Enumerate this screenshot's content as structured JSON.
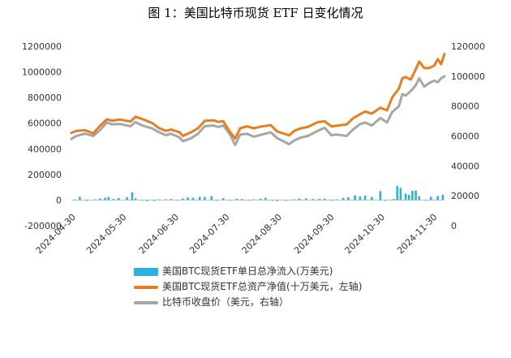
{
  "title": "图 1：美国比特币现货 ETF 日变化情况",
  "chart_data": {
    "type": "bar+line",
    "title": "图 1：美国比特币现货 ETF 日变化情况",
    "grid": false,
    "legend_position": "bottom",
    "x": {
      "tick_labels": [
        "2024-04-30",
        "2024-05-30",
        "2024-06-30",
        "2024-07-30",
        "2024-08-30",
        "2024-09-30",
        "2024-10-30",
        "2024-11-30"
      ],
      "start": "2024-04-30",
      "end": "2024-12-07"
    },
    "y_left": {
      "ylim": [
        -200000,
        1200000
      ],
      "tick_labels": [
        "-200000",
        "0",
        "200000",
        "400000",
        "600000",
        "800000",
        "1000000",
        "1200000"
      ]
    },
    "y_right": {
      "ylim": [
        0,
        120000
      ],
      "tick_labels": [
        "0",
        "20000",
        "40000",
        "60000",
        "80000",
        "100000",
        "120000"
      ]
    },
    "series": [
      {
        "name": "美国BTC现货ETF单日总净流入(万美元)",
        "type": "bar",
        "axis": "left",
        "color": "#2fb1e0",
        "points": [
          [
            "2024-05-02",
            3000
          ],
          [
            "2024-05-05",
            25000
          ],
          [
            "2024-05-09",
            -6000
          ],
          [
            "2024-05-14",
            6000
          ],
          [
            "2024-05-17",
            12000
          ],
          [
            "2024-05-20",
            18000
          ],
          [
            "2024-05-22",
            24000
          ],
          [
            "2024-05-25",
            8000
          ],
          [
            "2024-05-28",
            16000
          ],
          [
            "2024-06-02",
            22000
          ],
          [
            "2024-06-05",
            60000
          ],
          [
            "2024-06-07",
            14000
          ],
          [
            "2024-06-11",
            -5000
          ],
          [
            "2024-06-14",
            -8000
          ],
          [
            "2024-06-18",
            -7000
          ],
          [
            "2024-06-21",
            5000
          ],
          [
            "2024-06-25",
            6000
          ],
          [
            "2024-06-28",
            8000
          ],
          [
            "2024-07-02",
            -3000
          ],
          [
            "2024-07-05",
            12000
          ],
          [
            "2024-07-08",
            20000
          ],
          [
            "2024-07-11",
            18000
          ],
          [
            "2024-07-15",
            25000
          ],
          [
            "2024-07-18",
            24000
          ],
          [
            "2024-07-22",
            30000
          ],
          [
            "2024-07-25",
            -6000
          ],
          [
            "2024-07-29",
            15000
          ],
          [
            "2024-08-02",
            -4000
          ],
          [
            "2024-08-06",
            10000
          ],
          [
            "2024-08-09",
            8000
          ],
          [
            "2024-08-13",
            -5000
          ],
          [
            "2024-08-16",
            6000
          ],
          [
            "2024-08-20",
            10000
          ],
          [
            "2024-08-23",
            18000
          ],
          [
            "2024-08-27",
            -5000
          ],
          [
            "2024-08-30",
            -8000
          ],
          [
            "2024-09-04",
            -6000
          ],
          [
            "2024-09-09",
            5000
          ],
          [
            "2024-09-12",
            12000
          ],
          [
            "2024-09-16",
            14000
          ],
          [
            "2024-09-20",
            8000
          ],
          [
            "2024-09-24",
            10000
          ],
          [
            "2024-09-27",
            12000
          ],
          [
            "2024-10-01",
            -3000
          ],
          [
            "2024-10-04",
            6000
          ],
          [
            "2024-10-08",
            18000
          ],
          [
            "2024-10-11",
            22000
          ],
          [
            "2024-10-15",
            36000
          ],
          [
            "2024-10-18",
            28000
          ],
          [
            "2024-10-21",
            35000
          ],
          [
            "2024-10-25",
            24000
          ],
          [
            "2024-10-30",
            70000
          ],
          [
            "2024-11-02",
            -6000
          ],
          [
            "2024-11-07",
            8000
          ],
          [
            "2024-11-09",
            110000
          ],
          [
            "2024-11-11",
            95000
          ],
          [
            "2024-11-14",
            50000
          ],
          [
            "2024-11-16",
            40000
          ],
          [
            "2024-11-18",
            72000
          ],
          [
            "2024-11-20",
            75000
          ],
          [
            "2024-11-22",
            30000
          ],
          [
            "2024-11-26",
            -4000
          ],
          [
            "2024-11-29",
            25000
          ],
          [
            "2024-12-03",
            32000
          ],
          [
            "2024-12-06",
            42000
          ]
        ]
      },
      {
        "name": "美国BTC现货ETF总资产净值(十万美元，左轴)",
        "type": "line",
        "axis": "left",
        "color": "#e67e22",
        "points": [
          [
            "2024-04-30",
            525000
          ],
          [
            "2024-05-03",
            540000
          ],
          [
            "2024-05-08",
            545000
          ],
          [
            "2024-05-13",
            520000
          ],
          [
            "2024-05-17",
            580000
          ],
          [
            "2024-05-21",
            630000
          ],
          [
            "2024-05-24",
            620000
          ],
          [
            "2024-05-29",
            628000
          ],
          [
            "2024-06-04",
            612000
          ],
          [
            "2024-06-07",
            650000
          ],
          [
            "2024-06-11",
            632000
          ],
          [
            "2024-06-17",
            600000
          ],
          [
            "2024-06-21",
            560000
          ],
          [
            "2024-06-25",
            540000
          ],
          [
            "2024-06-28",
            550000
          ],
          [
            "2024-07-03",
            530000
          ],
          [
            "2024-07-05",
            500000
          ],
          [
            "2024-07-10",
            530000
          ],
          [
            "2024-07-14",
            560000
          ],
          [
            "2024-07-18",
            618000
          ],
          [
            "2024-07-23",
            622000
          ],
          [
            "2024-07-26",
            610000
          ],
          [
            "2024-07-29",
            615000
          ],
          [
            "2024-08-02",
            530000
          ],
          [
            "2024-08-05",
            480000
          ],
          [
            "2024-08-08",
            560000
          ],
          [
            "2024-08-12",
            575000
          ],
          [
            "2024-08-16",
            560000
          ],
          [
            "2024-08-21",
            575000
          ],
          [
            "2024-08-26",
            585000
          ],
          [
            "2024-08-30",
            535000
          ],
          [
            "2024-09-06",
            505000
          ],
          [
            "2024-09-09",
            540000
          ],
          [
            "2024-09-13",
            560000
          ],
          [
            "2024-09-17",
            570000
          ],
          [
            "2024-09-23",
            608000
          ],
          [
            "2024-09-27",
            615000
          ],
          [
            "2024-10-01",
            575000
          ],
          [
            "2024-10-04",
            580000
          ],
          [
            "2024-10-10",
            590000
          ],
          [
            "2024-10-14",
            640000
          ],
          [
            "2024-10-18",
            670000
          ],
          [
            "2024-10-21",
            690000
          ],
          [
            "2024-10-25",
            675000
          ],
          [
            "2024-10-30",
            720000
          ],
          [
            "2024-11-03",
            700000
          ],
          [
            "2024-11-06",
            800000
          ],
          [
            "2024-11-10",
            870000
          ],
          [
            "2024-11-12",
            950000
          ],
          [
            "2024-11-14",
            960000
          ],
          [
            "2024-11-17",
            940000
          ],
          [
            "2024-11-20",
            1020000
          ],
          [
            "2024-11-22",
            1080000
          ],
          [
            "2024-11-25",
            1030000
          ],
          [
            "2024-11-28",
            1030000
          ],
          [
            "2024-12-01",
            1050000
          ],
          [
            "2024-12-03",
            1100000
          ],
          [
            "2024-12-05",
            1060000
          ],
          [
            "2024-12-07",
            1140000
          ]
        ]
      },
      {
        "name": "比特币收盘价（美元，右轴）",
        "type": "line",
        "axis": "right",
        "color": "#a6a6a6",
        "points": [
          [
            "2024-04-30",
            58000
          ],
          [
            "2024-05-03",
            60000
          ],
          [
            "2024-05-08",
            61500
          ],
          [
            "2024-05-13",
            60000
          ],
          [
            "2024-05-17",
            64000
          ],
          [
            "2024-05-21",
            69000
          ],
          [
            "2024-05-24",
            67800
          ],
          [
            "2024-05-29",
            68000
          ],
          [
            "2024-06-04",
            66500
          ],
          [
            "2024-06-07",
            69300
          ],
          [
            "2024-06-11",
            67000
          ],
          [
            "2024-06-17",
            65000
          ],
          [
            "2024-06-21",
            62500
          ],
          [
            "2024-06-25",
            60500
          ],
          [
            "2024-06-28",
            61500
          ],
          [
            "2024-07-03",
            59000
          ],
          [
            "2024-07-05",
            56500
          ],
          [
            "2024-07-10",
            58500
          ],
          [
            "2024-07-14",
            61500
          ],
          [
            "2024-07-18",
            66500
          ],
          [
            "2024-07-23",
            67000
          ],
          [
            "2024-07-26",
            66000
          ],
          [
            "2024-07-29",
            67000
          ],
          [
            "2024-08-02",
            61000
          ],
          [
            "2024-08-05",
            54000
          ],
          [
            "2024-08-08",
            61000
          ],
          [
            "2024-08-12",
            61500
          ],
          [
            "2024-08-16",
            59500
          ],
          [
            "2024-08-21",
            61000
          ],
          [
            "2024-08-26",
            62500
          ],
          [
            "2024-08-30",
            58500
          ],
          [
            "2024-09-06",
            54500
          ],
          [
            "2024-09-09",
            57000
          ],
          [
            "2024-09-13",
            59000
          ],
          [
            "2024-09-17",
            60000
          ],
          [
            "2024-09-23",
            63500
          ],
          [
            "2024-09-27",
            65500
          ],
          [
            "2024-10-01",
            60500
          ],
          [
            "2024-10-04",
            61000
          ],
          [
            "2024-10-10",
            60000
          ],
          [
            "2024-10-14",
            64500
          ],
          [
            "2024-10-18",
            68000
          ],
          [
            "2024-10-21",
            69000
          ],
          [
            "2024-10-25",
            67000
          ],
          [
            "2024-10-30",
            72000
          ],
          [
            "2024-11-03",
            69000
          ],
          [
            "2024-11-06",
            76000
          ],
          [
            "2024-11-10",
            80000
          ],
          [
            "2024-11-12",
            88000
          ],
          [
            "2024-11-14",
            87000
          ],
          [
            "2024-11-17",
            90000
          ],
          [
            "2024-11-20",
            94000
          ],
          [
            "2024-11-22",
            98500
          ],
          [
            "2024-11-25",
            93000
          ],
          [
            "2024-11-28",
            95500
          ],
          [
            "2024-12-01",
            97000
          ],
          [
            "2024-12-03",
            96000
          ],
          [
            "2024-12-05",
            98500
          ],
          [
            "2024-12-07",
            100000
          ]
        ]
      }
    ]
  }
}
